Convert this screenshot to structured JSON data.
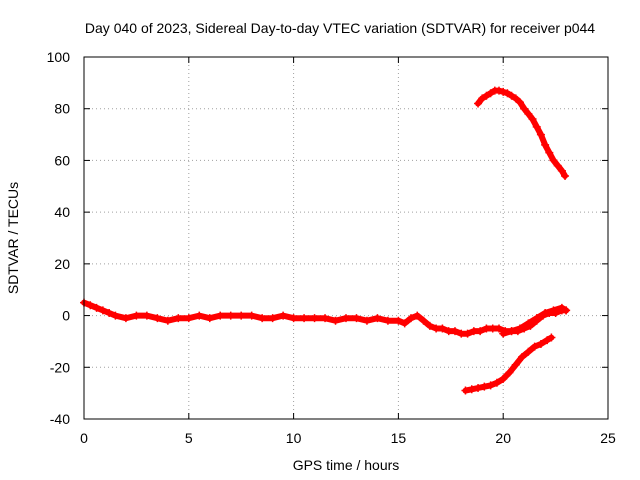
{
  "chart_data": {
    "type": "scatter",
    "title": "Day 040 of 2023, Sidereal Day-to-day VTEC variation (SDTVAR) for receiver p044",
    "xlabel": "GPS time / hours",
    "ylabel": "SDTVAR / TECUs",
    "xlim": [
      0,
      25
    ],
    "ylim": [
      -40,
      100
    ],
    "xticks": [
      0,
      5,
      10,
      15,
      20,
      25
    ],
    "yticks": [
      -40,
      -20,
      0,
      20,
      40,
      60,
      80,
      100
    ],
    "grid": true,
    "marker": "+",
    "color": "#ff0000",
    "series": [
      {
        "name": "main",
        "x": [
          0.0,
          0.3,
          0.6,
          0.9,
          1.2,
          1.5,
          2.0,
          2.5,
          3.0,
          3.5,
          4.0,
          4.5,
          5.0,
          5.5,
          6.0,
          6.5,
          7.0,
          7.5,
          8.0,
          8.5,
          9.0,
          9.5,
          10.0,
          10.5,
          11.0,
          11.5,
          12.0,
          12.5,
          13.0,
          13.5,
          14.0,
          14.5,
          15.0,
          15.3,
          15.6,
          15.9,
          16.2,
          16.5,
          16.8,
          17.1,
          17.4,
          17.7,
          18.0,
          18.3,
          18.6,
          18.9,
          19.2,
          19.5,
          19.8,
          20.1,
          20.4,
          20.7,
          21.0,
          21.3,
          21.6,
          21.9,
          22.2,
          22.5,
          22.8,
          23.0
        ],
        "y": [
          5,
          4,
          3,
          2,
          1,
          0,
          -1,
          0,
          0,
          -1,
          -2,
          -1,
          -1,
          0,
          -1,
          0,
          0,
          0,
          0,
          -1,
          -1,
          0,
          -1,
          -1,
          -1,
          -1,
          -2,
          -1,
          -1,
          -2,
          -1,
          -2,
          -2,
          -3,
          -1,
          0,
          -2,
          -4,
          -5,
          -5,
          -6,
          -6,
          -7,
          -7,
          -6,
          -6,
          -5,
          -5,
          -5,
          -6,
          -6,
          -6,
          -5,
          -4,
          -2,
          0,
          1,
          1,
          2,
          2
        ]
      },
      {
        "name": "upper-arc",
        "x": [
          18.8,
          19.0,
          19.2,
          19.4,
          19.6,
          19.8,
          20.0,
          20.2,
          20.4,
          20.6,
          20.8,
          21.0,
          21.2,
          21.4,
          21.6,
          21.8,
          22.0,
          22.2,
          22.4,
          22.6,
          22.8,
          22.95
        ],
        "y": [
          82,
          84,
          85,
          86,
          87,
          87,
          86.5,
          86,
          85,
          84,
          82.5,
          80,
          78,
          76,
          73,
          70,
          66,
          63,
          60,
          58,
          56,
          54
        ]
      },
      {
        "name": "lower-curve",
        "x": [
          18.2,
          18.5,
          18.8,
          19.1,
          19.4,
          19.7,
          20.0,
          20.3,
          20.6,
          20.9,
          21.2,
          21.5,
          21.8,
          22.1,
          22.3
        ],
        "y": [
          -29,
          -28.5,
          -28,
          -27.5,
          -27,
          -26,
          -24.5,
          -22,
          -19,
          -16,
          -14,
          -12,
          -11,
          -9.5,
          -8.5
        ]
      },
      {
        "name": "lower-branch",
        "x": [
          20.0,
          20.4,
          20.8,
          21.2,
          21.6,
          22.0,
          22.4,
          22.8,
          23.0
        ],
        "y": [
          -7,
          -6,
          -5,
          -3,
          -1,
          1,
          2,
          3,
          2
        ]
      }
    ]
  }
}
